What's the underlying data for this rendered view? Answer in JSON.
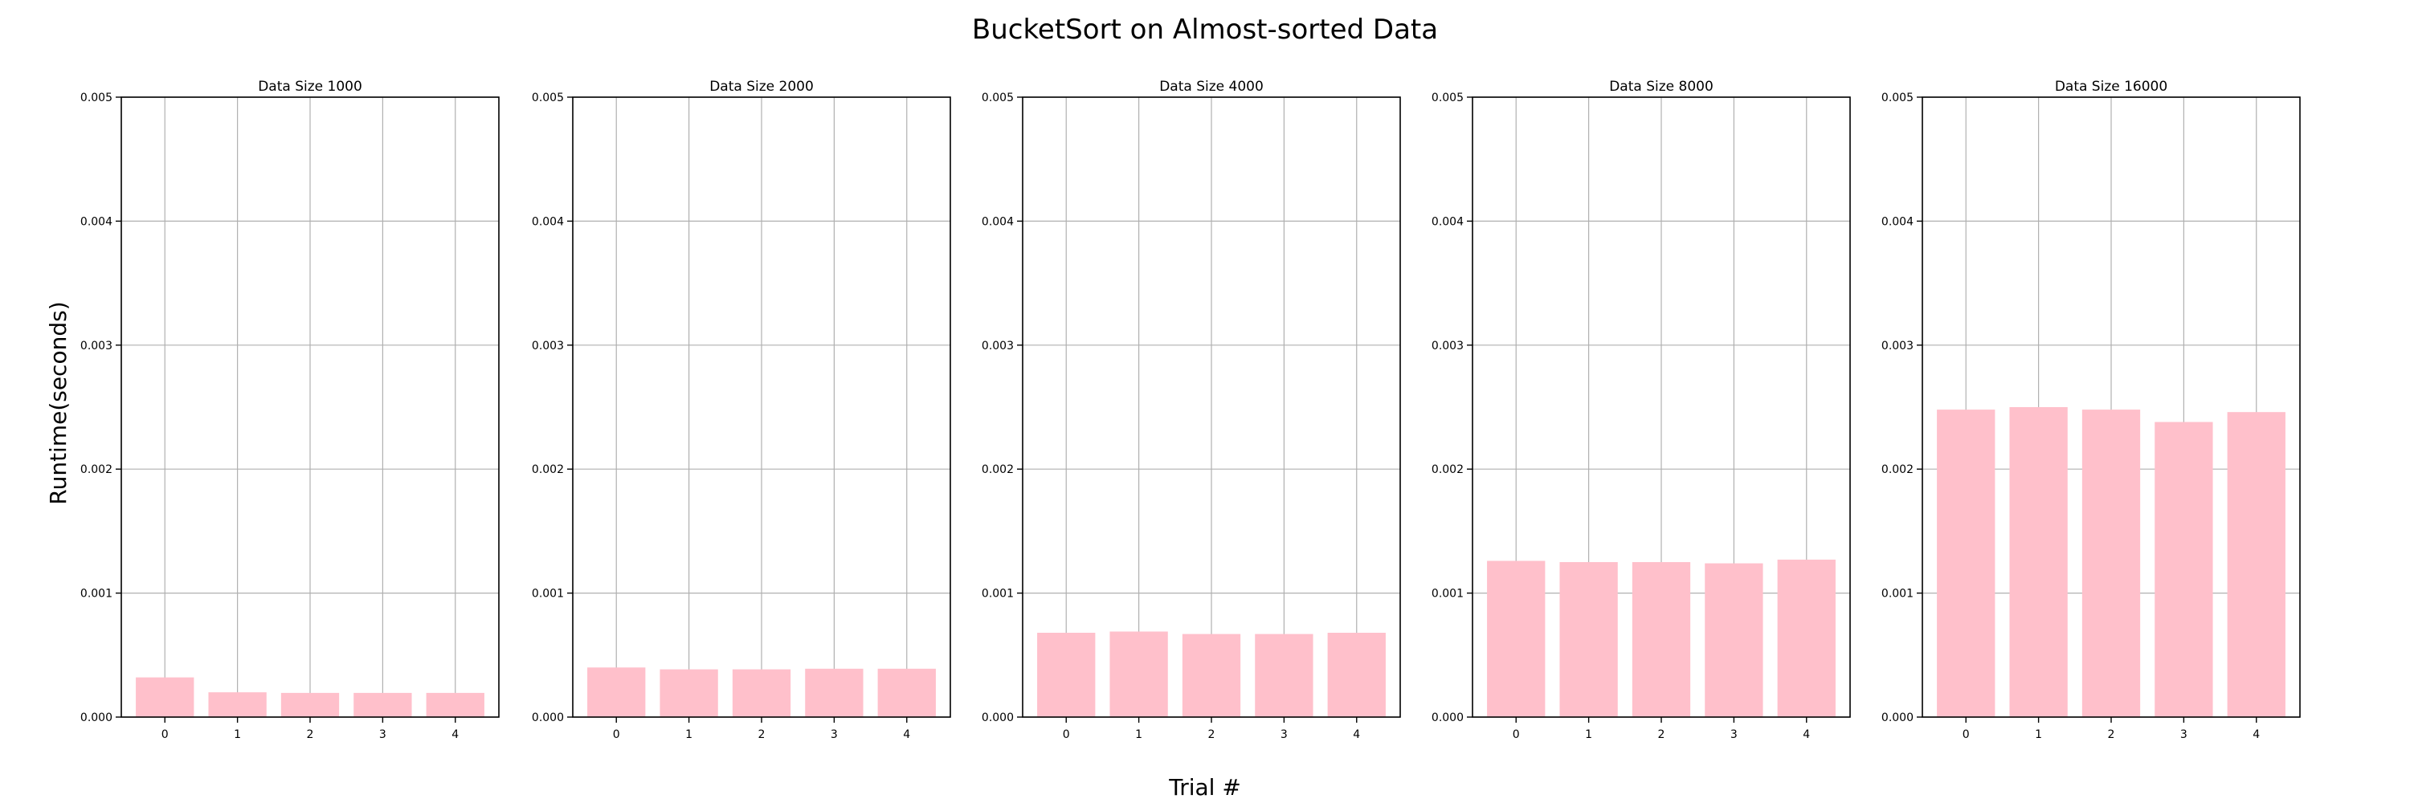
{
  "figure": {
    "title": "BucketSort on Almost-sorted Data",
    "xlabel": "Trial #",
    "ylabel": "Runtime(seconds)"
  },
  "colors": {
    "bar": "#ffc0cb",
    "grid": "#b0b0b0",
    "axes": "#000000"
  },
  "chart_data": [
    {
      "type": "bar",
      "title": "Data Size 1000",
      "categories": [
        "0",
        "1",
        "2",
        "3",
        "4"
      ],
      "values": [
        0.00032,
        0.0002,
        0.000195,
        0.000195,
        0.000195
      ],
      "ylim": [
        0,
        0.005
      ],
      "yticks": [
        "0.000",
        "0.001",
        "0.002",
        "0.003",
        "0.004",
        "0.005"
      ],
      "grid": true
    },
    {
      "type": "bar",
      "title": "Data Size 2000",
      "categories": [
        "0",
        "1",
        "2",
        "3",
        "4"
      ],
      "values": [
        0.0004,
        0.000385,
        0.000385,
        0.00039,
        0.00039
      ],
      "ylim": [
        0,
        0.005
      ],
      "yticks": [
        "0.000",
        "0.001",
        "0.002",
        "0.003",
        "0.004",
        "0.005"
      ],
      "grid": true
    },
    {
      "type": "bar",
      "title": "Data Size 4000",
      "categories": [
        "0",
        "1",
        "2",
        "3",
        "4"
      ],
      "values": [
        0.00068,
        0.00069,
        0.00067,
        0.00067,
        0.00068
      ],
      "ylim": [
        0,
        0.005
      ],
      "yticks": [
        "0.000",
        "0.001",
        "0.002",
        "0.003",
        "0.004",
        "0.005"
      ],
      "grid": true
    },
    {
      "type": "bar",
      "title": "Data Size 8000",
      "categories": [
        "0",
        "1",
        "2",
        "3",
        "4"
      ],
      "values": [
        0.00126,
        0.00125,
        0.00125,
        0.00124,
        0.00127
      ],
      "ylim": [
        0,
        0.005
      ],
      "yticks": [
        "0.000",
        "0.001",
        "0.002",
        "0.003",
        "0.004",
        "0.005"
      ],
      "grid": true
    },
    {
      "type": "bar",
      "title": "Data Size 16000",
      "categories": [
        "0",
        "1",
        "2",
        "3",
        "4"
      ],
      "values": [
        0.00248,
        0.0025,
        0.00248,
        0.00238,
        0.00246
      ],
      "ylim": [
        0,
        0.005
      ],
      "yticks": [
        "0.000",
        "0.001",
        "0.002",
        "0.003",
        "0.004",
        "0.005"
      ],
      "grid": true
    }
  ]
}
